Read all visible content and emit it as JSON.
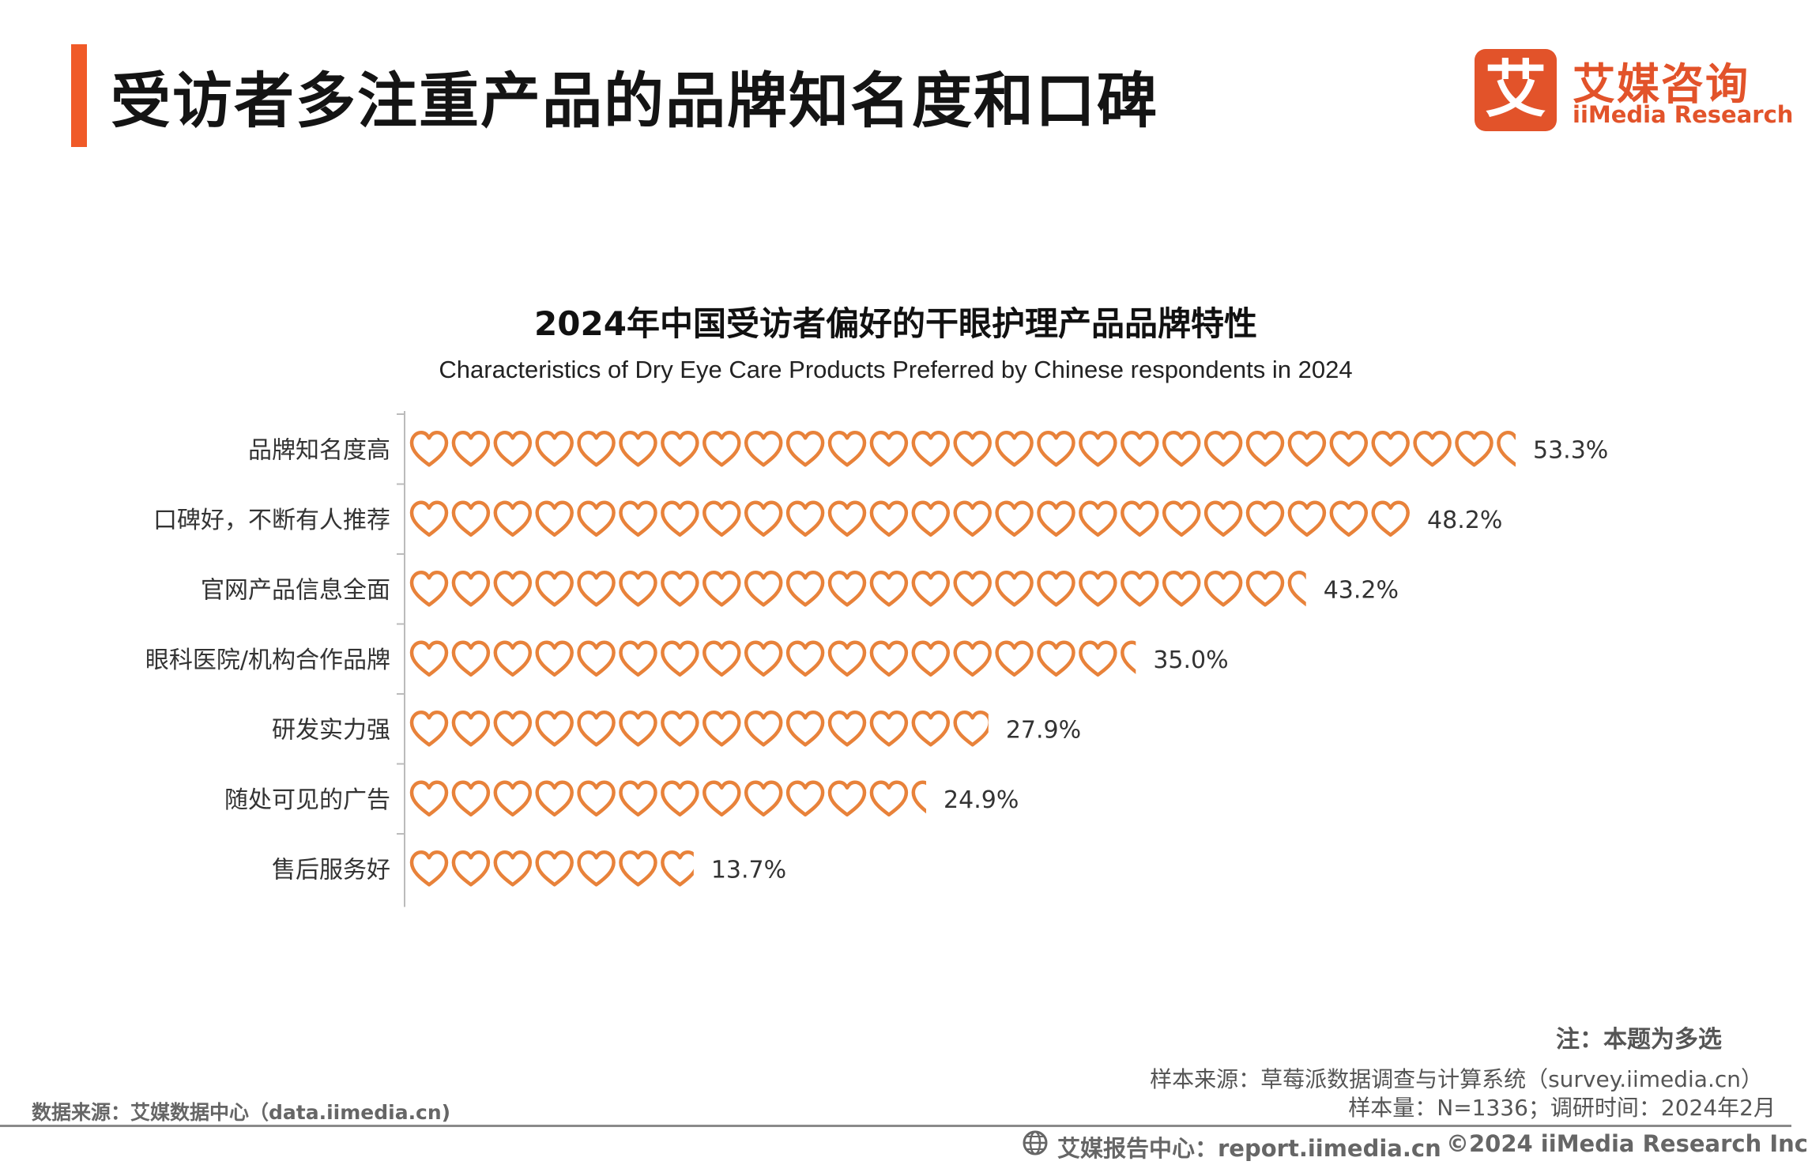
{
  "header": {
    "title": "受访者多注重产品的品牌知名度和口碑",
    "accent_color": "#F05A28"
  },
  "logo": {
    "glyph": "艾",
    "name_cn": "艾媒咨询",
    "name_en": "iiMedia Research",
    "color": "#E2532A"
  },
  "chart_data": {
    "type": "bar",
    "title": "2024年中国受访者偏好的干眼护理产品品牌特性",
    "subtitle": "Characteristics of Dry Eye Care Products Preferred by Chinese respondents in 2024",
    "orientation": "horizontal",
    "mark": "hearts",
    "categories": [
      "品牌知名度高",
      "口碑好，不断有人推荐",
      "官网产品信息全面",
      "眼科医院/机构合作品牌",
      "研发实力强",
      "随处可见的广告",
      "售后服务好"
    ],
    "values": [
      53.3,
      48.2,
      43.2,
      35.0,
      27.9,
      24.9,
      13.7
    ],
    "value_labels": [
      "53.3%",
      "48.2%",
      "43.2%",
      "35.0%",
      "27.9%",
      "24.9%",
      "13.7%"
    ],
    "unit": "%",
    "heart_color": "#E8823A"
  },
  "notes": {
    "note": "注：本题为多选",
    "sample_source": "样本来源：草莓派数据调查与计算系统（survey.iimedia.cn）",
    "sample_size": "样本量：N=1336；调研时间：2024年2月",
    "data_source": "数据来源：艾媒数据中心（data.iimedia.cn)"
  },
  "footer": {
    "report_center": "艾媒报告中心：report.iimedia.cn",
    "copyright": "©2024  iiMedia Research  Inc"
  }
}
